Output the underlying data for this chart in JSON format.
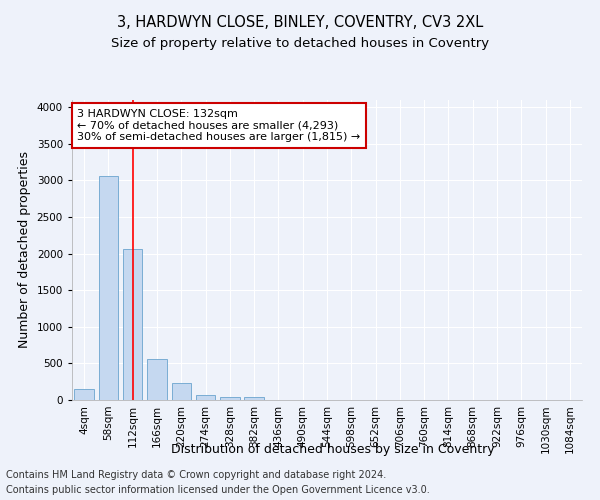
{
  "title_line1": "3, HARDWYN CLOSE, BINLEY, COVENTRY, CV3 2XL",
  "title_line2": "Size of property relative to detached houses in Coventry",
  "xlabel": "Distribution of detached houses by size in Coventry",
  "ylabel": "Number of detached properties",
  "categories": [
    "4sqm",
    "58sqm",
    "112sqm",
    "166sqm",
    "220sqm",
    "274sqm",
    "328sqm",
    "382sqm",
    "436sqm",
    "490sqm",
    "544sqm",
    "598sqm",
    "652sqm",
    "706sqm",
    "760sqm",
    "814sqm",
    "868sqm",
    "922sqm",
    "976sqm",
    "1030sqm",
    "1084sqm"
  ],
  "values": [
    145,
    3060,
    2060,
    560,
    235,
    70,
    45,
    45,
    0,
    0,
    0,
    0,
    0,
    0,
    0,
    0,
    0,
    0,
    0,
    0,
    0
  ],
  "bar_color": "#c5d8f0",
  "bar_edge_color": "#7aadd4",
  "red_line_x": 2,
  "annotation_line1": "3 HARDWYN CLOSE: 132sqm",
  "annotation_line2": "← 70% of detached houses are smaller (4,293)",
  "annotation_line3": "30% of semi-detached houses are larger (1,815) →",
  "annotation_box_color": "#ffffff",
  "annotation_box_edge_color": "#cc0000",
  "footer_line1": "Contains HM Land Registry data © Crown copyright and database right 2024.",
  "footer_line2": "Contains public sector information licensed under the Open Government Licence v3.0.",
  "ylim": [
    0,
    4100
  ],
  "background_color": "#eef2fa",
  "plot_bg_color": "#eef2fa",
  "grid_color": "#ffffff",
  "title_fontsize": 10.5,
  "subtitle_fontsize": 9.5,
  "axis_label_fontsize": 9,
  "tick_fontsize": 7.5,
  "footer_fontsize": 7,
  "ann_fontsize": 8
}
